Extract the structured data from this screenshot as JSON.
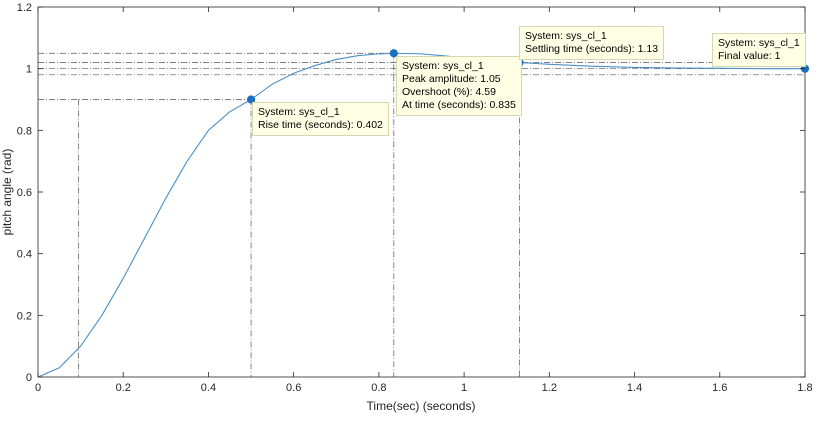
{
  "chart_data": {
    "type": "line",
    "xlabel": "Time(sec) (seconds)",
    "ylabel": "pitch angle (rad)",
    "xlim": [
      0,
      1.8
    ],
    "ylim": [
      0,
      1.2
    ],
    "xticks": [
      "0",
      "0.2",
      "0.4",
      "0.6",
      "0.8",
      "1",
      "1.2",
      "1.4",
      "1.6",
      "1.8"
    ],
    "yticks": [
      "0",
      "0.2",
      "0.4",
      "0.6",
      "0.8",
      "1",
      "1.2"
    ],
    "grid": false,
    "series": [
      {
        "color": "#4a90c8",
        "x": [
          0,
          0.05,
          0.1,
          0.15,
          0.2,
          0.25,
          0.3,
          0.35,
          0.4,
          0.45,
          0.5,
          0.55,
          0.6,
          0.65,
          0.7,
          0.75,
          0.8,
          0.835,
          0.9,
          0.95,
          1.0,
          1.05,
          1.1,
          1.13,
          1.2,
          1.3,
          1.4,
          1.5,
          1.6,
          1.7,
          1.8
        ],
        "y": [
          0,
          0.03,
          0.1,
          0.2,
          0.32,
          0.45,
          0.58,
          0.7,
          0.8,
          0.86,
          0.9,
          0.95,
          0.985,
          1.01,
          1.03,
          1.042,
          1.048,
          1.05,
          1.048,
          1.042,
          1.035,
          1.028,
          1.022,
          1.02,
          1.014,
          1.008,
          1.004,
          1.002,
          1.001,
          1.0,
          1.0
        ]
      }
    ],
    "rise_time_start": {
      "x": 0.095,
      "y": 0.1
    },
    "reference_lines": {
      "upper_settling_band": 1.02,
      "lower_settling_band": 0.98,
      "peak_level": 1.05,
      "final_level": 1.0,
      "rise_level": 0.9
    },
    "markers": [
      {
        "x": 0.5,
        "y": 0.9
      },
      {
        "x": 0.835,
        "y": 1.05
      },
      {
        "x": 1.13,
        "y": 1.02
      },
      {
        "x": 1.8,
        "y": 1.0
      }
    ]
  },
  "datatips": [
    {
      "lines": [
        "System: sys_cl_1",
        "Rise time (seconds): 0.402"
      ]
    },
    {
      "lines": [
        "System: sys_cl_1",
        "Peak amplitude: 1.05",
        "Overshoot (%): 4.59",
        "At time (seconds): 0.835"
      ]
    },
    {
      "lines": [
        "System: sys_cl_1",
        "Settling time (seconds): 1.13"
      ]
    },
    {
      "lines": [
        "System: sys_cl_1",
        "Final value: 1"
      ]
    }
  ]
}
